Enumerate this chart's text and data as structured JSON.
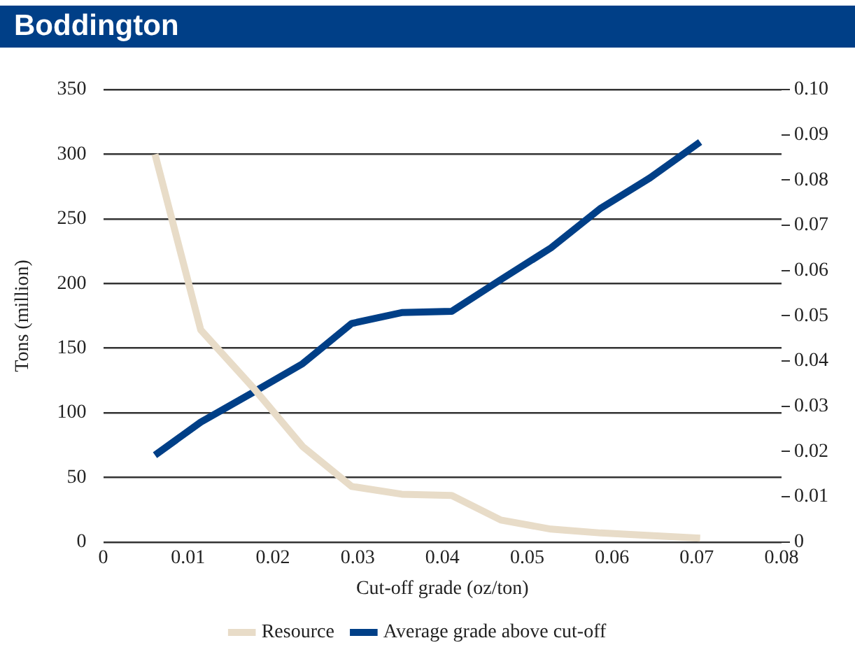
{
  "chart_data": {
    "type": "line",
    "title": "Boddington",
    "xlabel": "Cut-off grade (oz/ton)",
    "ylabel": "Tons (million)",
    "x": [
      0.0061,
      0.0115,
      0.0176,
      0.0235,
      0.0293,
      0.0352,
      0.0411,
      0.0469,
      0.0528,
      0.0587,
      0.0645,
      0.0704
    ],
    "series": [
      {
        "name": "Resource",
        "color": "#e8dcc8",
        "values": [
          300,
          164,
          120,
          74,
          43,
          37,
          36,
          17,
          10,
          7,
          5,
          3
        ]
      },
      {
        "name": "Average grade above cut-off",
        "color": "#003f87",
        "axis": "y2",
        "values": [
          0.0192,
          0.0265,
          0.033,
          0.0394,
          0.0483,
          0.0507,
          0.051,
          0.058,
          0.065,
          0.0738,
          0.0805,
          0.0884
        ]
      }
    ],
    "xlim": [
      0,
      0.08
    ],
    "xticks": [
      0,
      0.01,
      0.02,
      0.03,
      0.04,
      0.05,
      0.06,
      0.07,
      0.08
    ],
    "ylim": [
      0,
      350
    ],
    "yticks": [
      0,
      50,
      100,
      150,
      200,
      250,
      300,
      350
    ],
    "y2lim": [
      0,
      0.1
    ],
    "y2ticks": [
      0,
      0.01,
      0.02,
      0.03,
      0.04,
      0.05,
      0.06,
      0.07,
      0.08,
      0.09,
      {
        "value": 0.1,
        "label": "0.10"
      }
    ],
    "grid": "y",
    "legend": "bottom",
    "marker": "none",
    "line_style": "solid"
  }
}
